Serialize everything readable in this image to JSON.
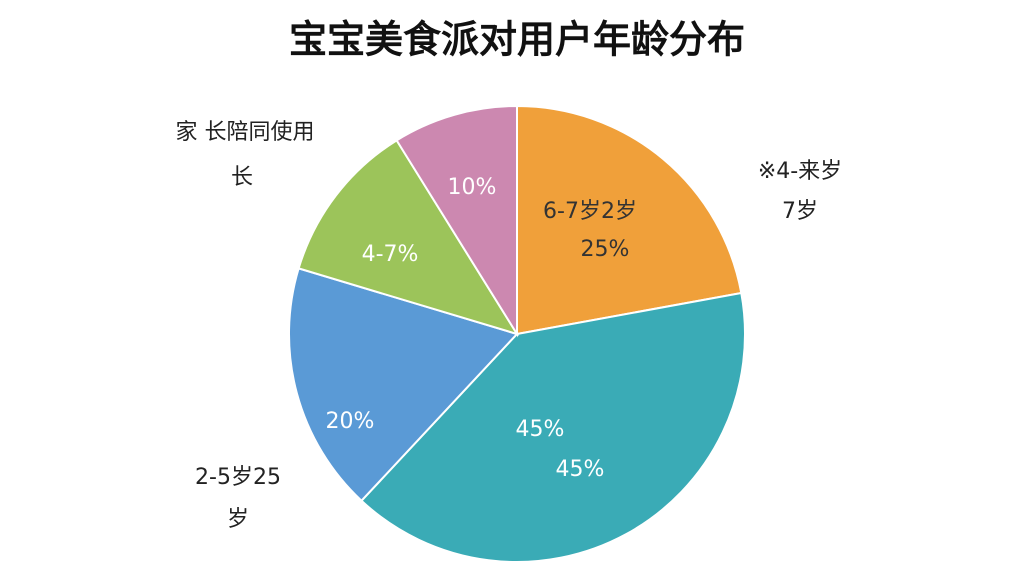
{
  "chart_data": {
    "type": "pie",
    "title": "宝宝美食派对用户年龄分布",
    "values": [
      25,
      45,
      20,
      13,
      10
    ],
    "value_labels": [
      "25%",
      "45%",
      "20%",
      null,
      "10%"
    ],
    "inner_labels": [
      "6-7岁2岁",
      "45%",
      null,
      "4-7%",
      null
    ],
    "colors": [
      "#f0a03a",
      "#3aabb6",
      "#5a9ad6",
      "#9cc45a",
      "#cc88b0"
    ],
    "annotations": [
      "家  长陪同使用",
      "长",
      "※4-来岁",
      "7岁",
      "2-5岁25",
      "岁"
    ]
  }
}
